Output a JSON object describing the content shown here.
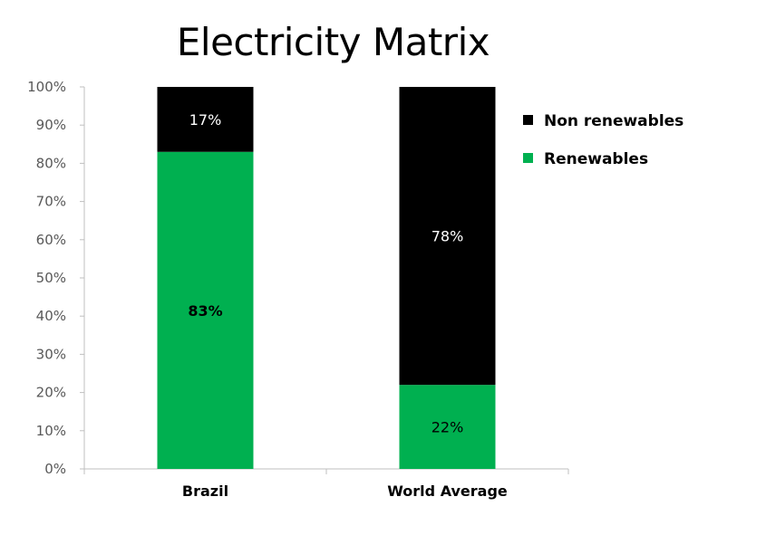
{
  "chart_data": {
    "type": "bar",
    "stacked": true,
    "title": "Electricity Matrix",
    "xlabel": "",
    "ylabel": "",
    "ylim": [
      0,
      100
    ],
    "yticks": [
      "0%",
      "10%",
      "20%",
      "30%",
      "40%",
      "50%",
      "60%",
      "70%",
      "80%",
      "90%",
      "100%"
    ],
    "categories": [
      "Brazil",
      "World Average"
    ],
    "series": [
      {
        "name": "Renewables",
        "color": "#00B050",
        "values": [
          83,
          22
        ],
        "labels": [
          "83%",
          "22%"
        ],
        "label_bold": [
          true,
          false
        ],
        "label_color": "#000000"
      },
      {
        "name": "Non renewables",
        "color": "#000000",
        "values": [
          17,
          78
        ],
        "labels": [
          "17%",
          "78%"
        ],
        "label_bold": [
          false,
          false
        ],
        "label_color": "#FFFFFF"
      }
    ],
    "legend": {
      "placement": "right",
      "order": [
        "Non renewables",
        "Renewables"
      ]
    },
    "grid": false
  }
}
